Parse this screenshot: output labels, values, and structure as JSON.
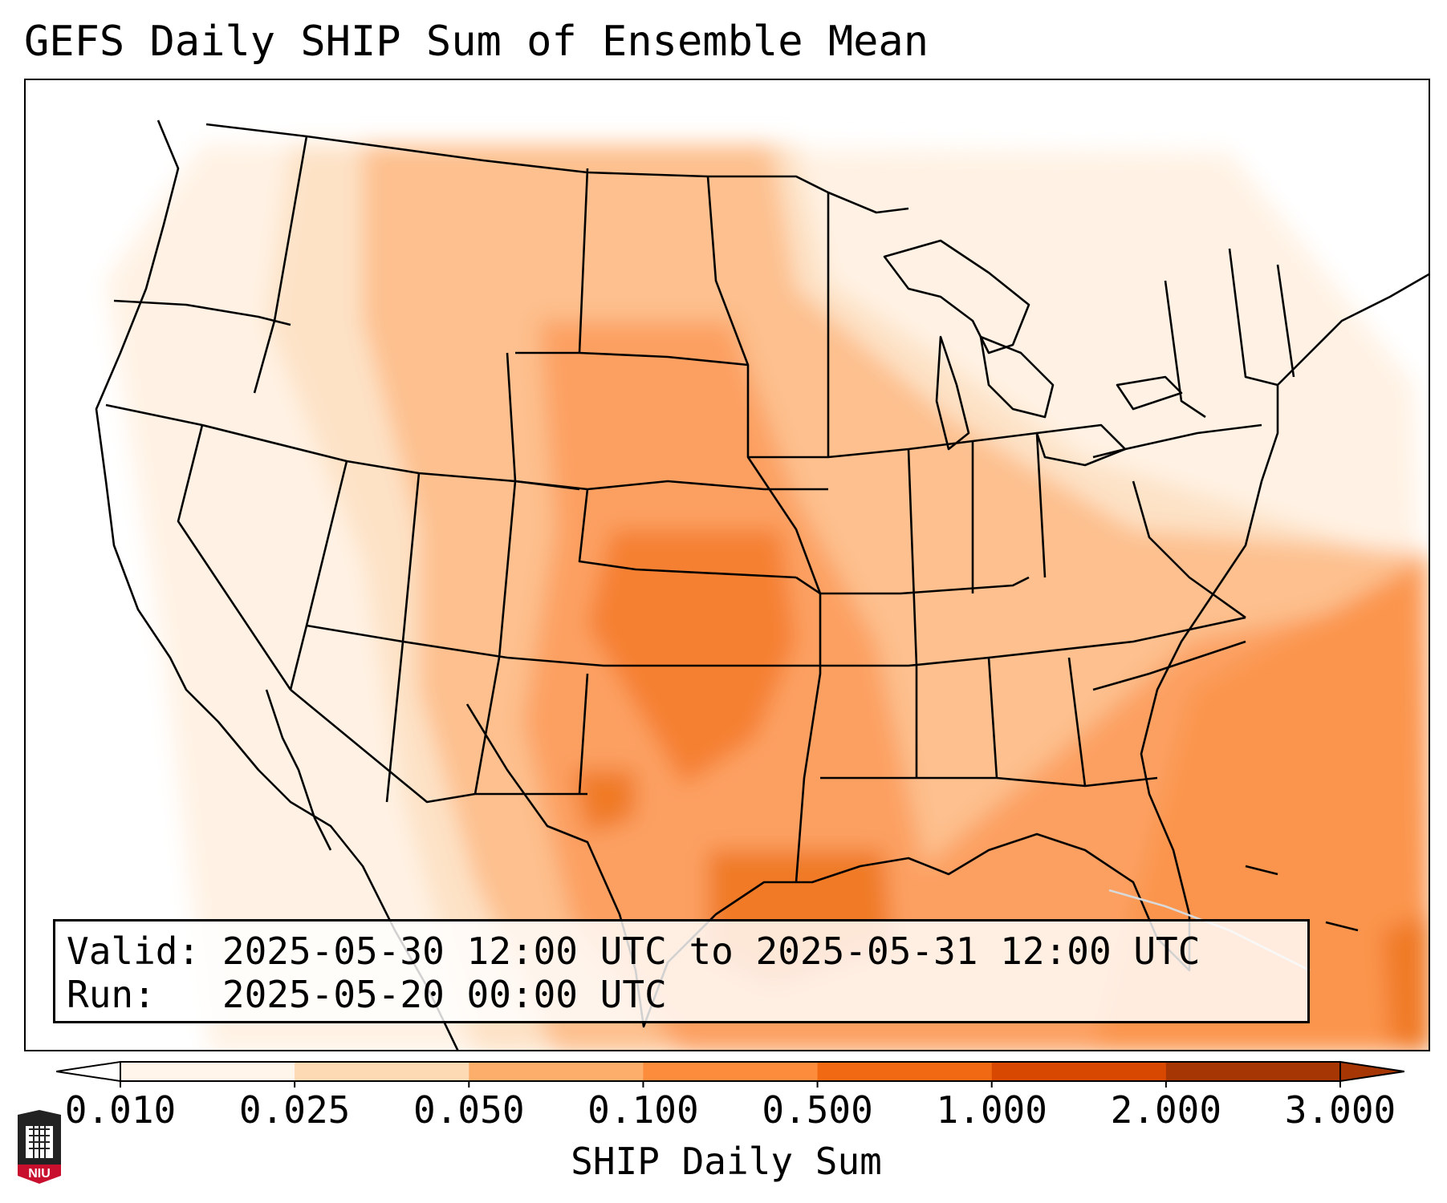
{
  "title": "GEFS Daily SHIP Sum of Ensemble Mean",
  "info": {
    "valid_label": "Valid:",
    "valid_value": "2025-05-30 12:00 UTC to 2025-05-31 12:00 UTC",
    "run_label": "Run:",
    "run_value": "2025-05-20 00:00 UTC"
  },
  "colorbar": {
    "label": "SHIP Daily Sum",
    "ticks": [
      "0.010",
      "0.025",
      "0.050",
      "0.100",
      "0.500",
      "1.000",
      "2.000",
      "3.000"
    ],
    "colors": [
      "#fff5eb",
      "#fdd9b4",
      "#fdae6b",
      "#fd8d3c",
      "#f16913",
      "#d94801",
      "#a63603"
    ],
    "extend": "both"
  },
  "logo": {
    "text": "NIU"
  }
}
